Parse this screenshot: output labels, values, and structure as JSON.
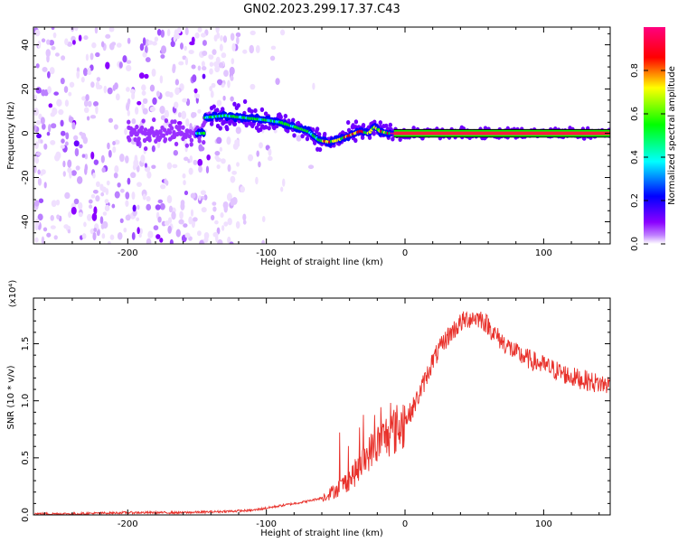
{
  "figure_title": "GN02.2023.299.17.37.C43",
  "chart_data": [
    {
      "type": "heatmap",
      "title": "",
      "xlabel": "Height of straight line (km)",
      "ylabel": "Frequency (Hz)",
      "xlim": [
        -268,
        148
      ],
      "ylim": [
        -50,
        48
      ],
      "x_ticks": [
        -200,
        -100,
        0,
        100
      ],
      "y_ticks": [
        -40,
        -20,
        0,
        20,
        40
      ],
      "colorbar": {
        "label": "Normalized spectral amplitude",
        "range": [
          0.0,
          1.0
        ],
        "ticks": [
          "0.0",
          "0.2",
          "0.4",
          "0.6",
          "0.8"
        ],
        "colormap": [
          "#ffffff",
          "#8a00ff",
          "#0000ff",
          "#00ffff",
          "#00ff00",
          "#ffff00",
          "#ff0000",
          "#ff007f"
        ]
      },
      "ridge": {
        "x": [
          -145,
          -130,
          -115,
          -100,
          -90,
          -80,
          -70,
          -62,
          -55,
          -48,
          -40,
          -32,
          -26,
          -22,
          -18,
          -12,
          0,
          20,
          40,
          60,
          148
        ],
        "y": [
          7,
          8,
          7,
          6,
          5,
          3,
          1,
          -3,
          -4,
          -3,
          -1,
          1,
          0,
          3,
          1,
          0,
          0,
          0,
          0,
          0,
          0
        ]
      }
    },
    {
      "type": "line",
      "title": "",
      "xlabel": "Height of straight line (km)",
      "ylabel": "SNR (10 * v/v)",
      "y_multiplier": "(x10⁴)",
      "xlim": [
        -268,
        148
      ],
      "ylim": [
        0,
        1.9
      ],
      "x_ticks": [
        -200,
        -100,
        0,
        100
      ],
      "y_ticks": [
        "0.0",
        "0.5",
        "1.0",
        "1.5"
      ],
      "color": "#e8302a",
      "series": [
        {
          "x": [
            -268,
            -240,
            -200,
            -160,
            -130,
            -110,
            -100,
            -90,
            -80,
            -70,
            -60,
            -55,
            -50,
            -45,
            -40,
            -35,
            -30,
            -25,
            -20,
            -15,
            -10,
            -5,
            0,
            5,
            10,
            15,
            20,
            25,
            30,
            35,
            40,
            45,
            50,
            55,
            60,
            65,
            70,
            75,
            80,
            90,
            100,
            110,
            120,
            130,
            140,
            148
          ],
          "values": [
            0.01,
            0.01,
            0.02,
            0.02,
            0.03,
            0.04,
            0.06,
            0.08,
            0.1,
            0.12,
            0.15,
            0.18,
            0.22,
            0.26,
            0.32,
            0.38,
            0.46,
            0.56,
            0.62,
            0.68,
            0.72,
            0.76,
            0.82,
            0.92,
            1.05,
            1.2,
            1.35,
            1.45,
            1.55,
            1.62,
            1.68,
            1.72,
            1.73,
            1.72,
            1.66,
            1.58,
            1.52,
            1.47,
            1.42,
            1.36,
            1.31,
            1.26,
            1.21,
            1.18,
            1.15,
            1.14
          ]
        }
      ]
    }
  ]
}
